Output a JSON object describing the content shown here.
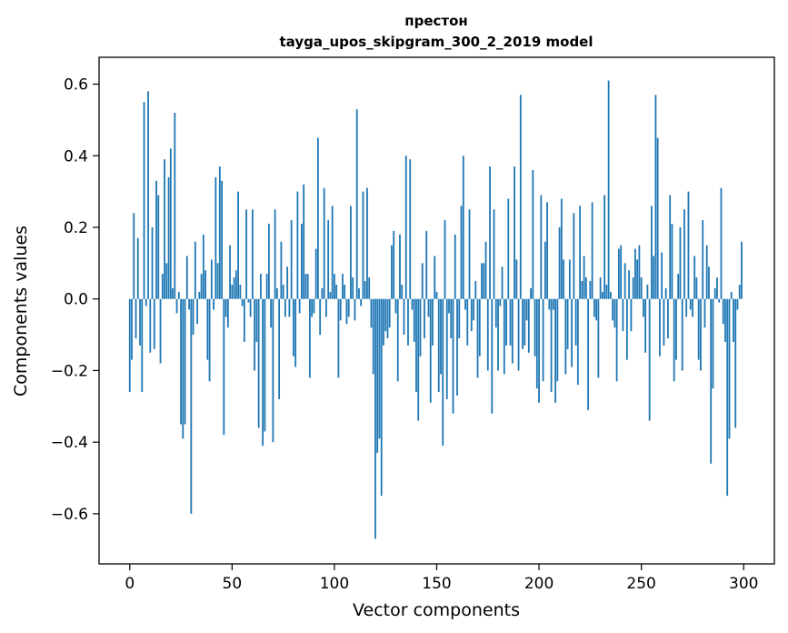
{
  "chart_data": {
    "type": "bar",
    "title": "престон",
    "subtitle": "tayga_upos_skipgram_300_2_2019 model",
    "xlabel": "Vector components",
    "ylabel": "Components values",
    "xlim": [
      -15,
      315
    ],
    "ylim": [
      -0.74,
      0.675
    ],
    "xticks": [
      0,
      50,
      100,
      150,
      200,
      250,
      300
    ],
    "xtick_labels": [
      "0",
      "50",
      "100",
      "150",
      "200",
      "250",
      "300"
    ],
    "yticks": [
      -0.6,
      -0.4,
      -0.2,
      0.0,
      0.2,
      0.4,
      0.6
    ],
    "ytick_labels": [
      "−0.6",
      "−0.4",
      "−0.2",
      "0.0",
      "0.2",
      "0.4",
      "0.6"
    ],
    "grid": false,
    "bar_color": "#1f77b4",
    "values": [
      -0.26,
      -0.17,
      0.24,
      -0.11,
      0.17,
      -0.13,
      -0.26,
      0.55,
      -0.02,
      0.58,
      -0.15,
      0.2,
      -0.14,
      0.33,
      0.29,
      -0.18,
      0.07,
      0.39,
      0.1,
      0.34,
      0.42,
      0.03,
      0.52,
      -0.04,
      0.02,
      -0.35,
      -0.39,
      -0.35,
      0.12,
      -0.03,
      -0.6,
      -0.1,
      0.16,
      -0.07,
      0.02,
      0.07,
      0.18,
      0.08,
      -0.17,
      -0.23,
      0.11,
      -0.03,
      0.34,
      0.1,
      0.37,
      0.33,
      -0.38,
      -0.05,
      -0.08,
      0.15,
      0.04,
      0.06,
      0.08,
      0.3,
      0.04,
      -0.02,
      -0.12,
      0.25,
      -0.01,
      -0.05,
      0.25,
      -0.2,
      -0.12,
      -0.36,
      0.07,
      -0.41,
      -0.37,
      0.07,
      0.21,
      -0.08,
      -0.4,
      0.25,
      0.03,
      -0.28,
      0.16,
      0.04,
      -0.05,
      0.09,
      -0.05,
      0.22,
      -0.16,
      -0.19,
      0.3,
      -0.04,
      0.21,
      0.32,
      0.07,
      0.07,
      -0.22,
      -0.05,
      -0.04,
      0.14,
      0.45,
      -0.1,
      0.03,
      0.31,
      -0.05,
      0.22,
      0.02,
      0.26,
      0.07,
      0.04,
      -0.22,
      -0.06,
      0.07,
      0.04,
      -0.07,
      -0.05,
      0.26,
      0.06,
      -0.06,
      0.53,
      0.03,
      -0.02,
      0.3,
      0.05,
      0.31,
      0.06,
      -0.08,
      -0.21,
      -0.67,
      -0.43,
      -0.39,
      -0.55,
      -0.13,
      -0.09,
      -0.11,
      -0.08,
      0.15,
      0.19,
      -0.04,
      -0.23,
      0.18,
      0.04,
      -0.1,
      0.4,
      -0.13,
      0.39,
      -0.03,
      -0.12,
      -0.26,
      -0.34,
      -0.16,
      0.1,
      -0.11,
      0.19,
      -0.05,
      -0.29,
      -0.13,
      0.12,
      0.02,
      -0.26,
      -0.21,
      -0.41,
      0.22,
      -0.28,
      -0.04,
      -0.11,
      -0.32,
      0.18,
      -0.27,
      -0.11,
      0.26,
      0.4,
      -0.03,
      -0.13,
      0.25,
      -0.09,
      -0.06,
      0.05,
      -0.22,
      -0.16,
      0.1,
      0.1,
      0.16,
      -0.2,
      0.37,
      -0.32,
      0.25,
      -0.08,
      -0.2,
      -0.02,
      0.09,
      -0.21,
      -0.13,
      0.28,
      -0.13,
      -0.18,
      0.37,
      0.11,
      -0.2,
      0.57,
      -0.14,
      -0.13,
      -0.06,
      -0.15,
      0.03,
      0.36,
      -0.16,
      -0.25,
      -0.29,
      0.29,
      -0.23,
      0.16,
      0.27,
      -0.03,
      -0.26,
      -0.03,
      -0.29,
      -0.23,
      0.2,
      0.28,
      0.11,
      -0.21,
      -0.14,
      0.11,
      -0.19,
      0.24,
      -0.13,
      -0.24,
      0.26,
      0.05,
      0.12,
      0.06,
      -0.31,
      0.05,
      0.27,
      -0.05,
      -0.06,
      -0.22,
      0.06,
      0.02,
      0.29,
      0.04,
      0.61,
      0.02,
      -0.06,
      -0.08,
      -0.23,
      0.14,
      0.15,
      -0.09,
      0.1,
      -0.17,
      0.08,
      -0.09,
      0.06,
      0.14,
      0.11,
      0.15,
      0.06,
      -0.05,
      -0.15,
      0.04,
      -0.34,
      0.26,
      0.12,
      0.57,
      0.45,
      -0.16,
      0.13,
      -0.13,
      0.03,
      -0.11,
      0.29,
      0.21,
      -0.23,
      -0.17,
      0.07,
      0.2,
      -0.2,
      0.25,
      -0.05,
      0.3,
      -0.03,
      -0.05,
      0.12,
      0.06,
      -0.17,
      -0.2,
      0.22,
      -0.08,
      0.15,
      0.09,
      -0.46,
      -0.25,
      0.03,
      0.06,
      -0.01,
      0.31,
      -0.07,
      -0.12,
      -0.55,
      -0.39,
      0.02,
      -0.12,
      -0.36,
      -0.03,
      0.04,
      0.16
    ]
  }
}
